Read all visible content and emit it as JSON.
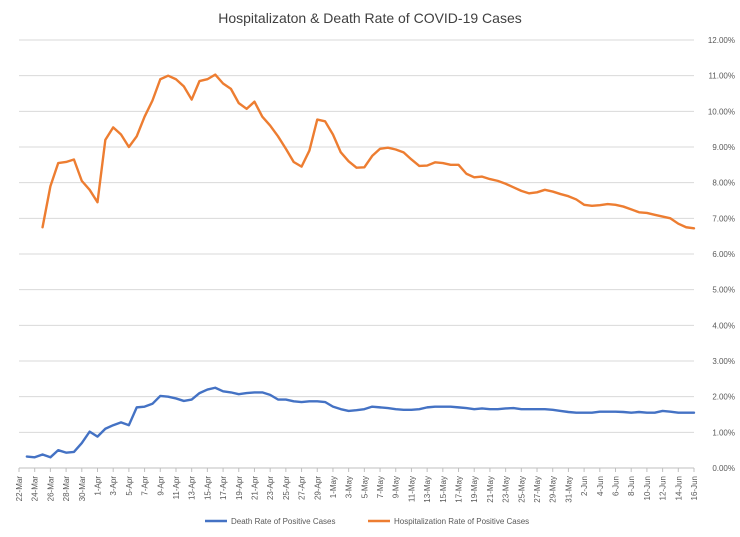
{
  "chart_data": {
    "type": "line",
    "title": "Hospitalizaton & Death Rate of COVID-19 Cases",
    "xlabel": "",
    "ylabel": "",
    "ylim": [
      0,
      12
    ],
    "y_tick_labels": [
      "0.00%",
      "1.00%",
      "2.00%",
      "3.00%",
      "4.00%",
      "5.00%",
      "6.00%",
      "7.00%",
      "8.00%",
      "9.00%",
      "10.00%",
      "11.00%",
      "12.00%"
    ],
    "x_tick_labels": [
      "22-Mar",
      "24-Mar",
      "26-Mar",
      "28-Mar",
      "30-Mar",
      "1-Apr",
      "3-Apr",
      "5-Apr",
      "7-Apr",
      "9-Apr",
      "11-Apr",
      "13-Apr",
      "15-Apr",
      "17-Apr",
      "19-Apr",
      "21-Apr",
      "23-Apr",
      "25-Apr",
      "27-Apr",
      "29-Apr",
      "1-May",
      "3-May",
      "5-May",
      "7-May",
      "9-May",
      "11-May",
      "13-May",
      "15-May",
      "17-May",
      "19-May",
      "21-May",
      "23-May",
      "25-May",
      "27-May",
      "29-May",
      "31-May",
      "2-Jun",
      "4-Jun",
      "6-Jun",
      "8-Jun",
      "10-Jun",
      "12-Jun",
      "14-Jun",
      "16-Jun"
    ],
    "grid": true,
    "legend_position": "bottom",
    "series": [
      {
        "name": "Death Rate of Positive Cases",
        "color": "#4472c4",
        "start_index": 1,
        "values": [
          0.32,
          0.3,
          0.38,
          0.3,
          0.5,
          0.43,
          0.45,
          0.7,
          1.02,
          0.88,
          1.1,
          1.2,
          1.28,
          1.2,
          1.7,
          1.72,
          1.8,
          2.02,
          2.0,
          1.95,
          1.88,
          1.92,
          2.1,
          2.2,
          2.25,
          2.15,
          2.12,
          2.07,
          2.1,
          2.12,
          2.12,
          2.05,
          1.92,
          1.92,
          1.87,
          1.85,
          1.87,
          1.87,
          1.85,
          1.72,
          1.65,
          1.6,
          1.62,
          1.65,
          1.72,
          1.7,
          1.68,
          1.65,
          1.63,
          1.63,
          1.65,
          1.7,
          1.72,
          1.72,
          1.72,
          1.7,
          1.68,
          1.65,
          1.67,
          1.65,
          1.65,
          1.67,
          1.68,
          1.65,
          1.65,
          1.65,
          1.65,
          1.63,
          1.6,
          1.57,
          1.55,
          1.55,
          1.55,
          1.58,
          1.58,
          1.58,
          1.57,
          1.55,
          1.57,
          1.55,
          1.55,
          1.6,
          1.58,
          1.55,
          1.55,
          1.55
        ]
      },
      {
        "name": "Hospitalization Rate of Positive Cases",
        "color": "#ed7d31",
        "start_index": 3,
        "values": [
          6.75,
          7.9,
          8.55,
          8.58,
          8.65,
          8.05,
          7.8,
          7.45,
          9.2,
          9.55,
          9.35,
          9.0,
          9.3,
          9.85,
          10.3,
          10.9,
          11.0,
          10.9,
          10.7,
          10.33,
          10.85,
          10.9,
          11.03,
          10.78,
          10.63,
          10.23,
          10.07,
          10.27,
          9.85,
          9.6,
          9.3,
          8.95,
          8.58,
          8.45,
          8.9,
          9.77,
          9.72,
          9.35,
          8.85,
          8.6,
          8.42,
          8.43,
          8.75,
          8.95,
          8.98,
          8.93,
          8.85,
          8.65,
          8.47,
          8.48,
          8.57,
          8.55,
          8.5,
          8.5,
          8.25,
          8.15,
          8.17,
          8.1,
          8.05,
          7.97,
          7.87,
          7.77,
          7.7,
          7.73,
          7.8,
          7.75,
          7.68,
          7.62,
          7.53,
          7.38,
          7.35,
          7.37,
          7.4,
          7.38,
          7.33,
          7.25,
          7.17,
          7.15,
          7.1,
          7.05,
          7.0,
          6.85,
          6.75,
          6.72
        ]
      }
    ]
  }
}
